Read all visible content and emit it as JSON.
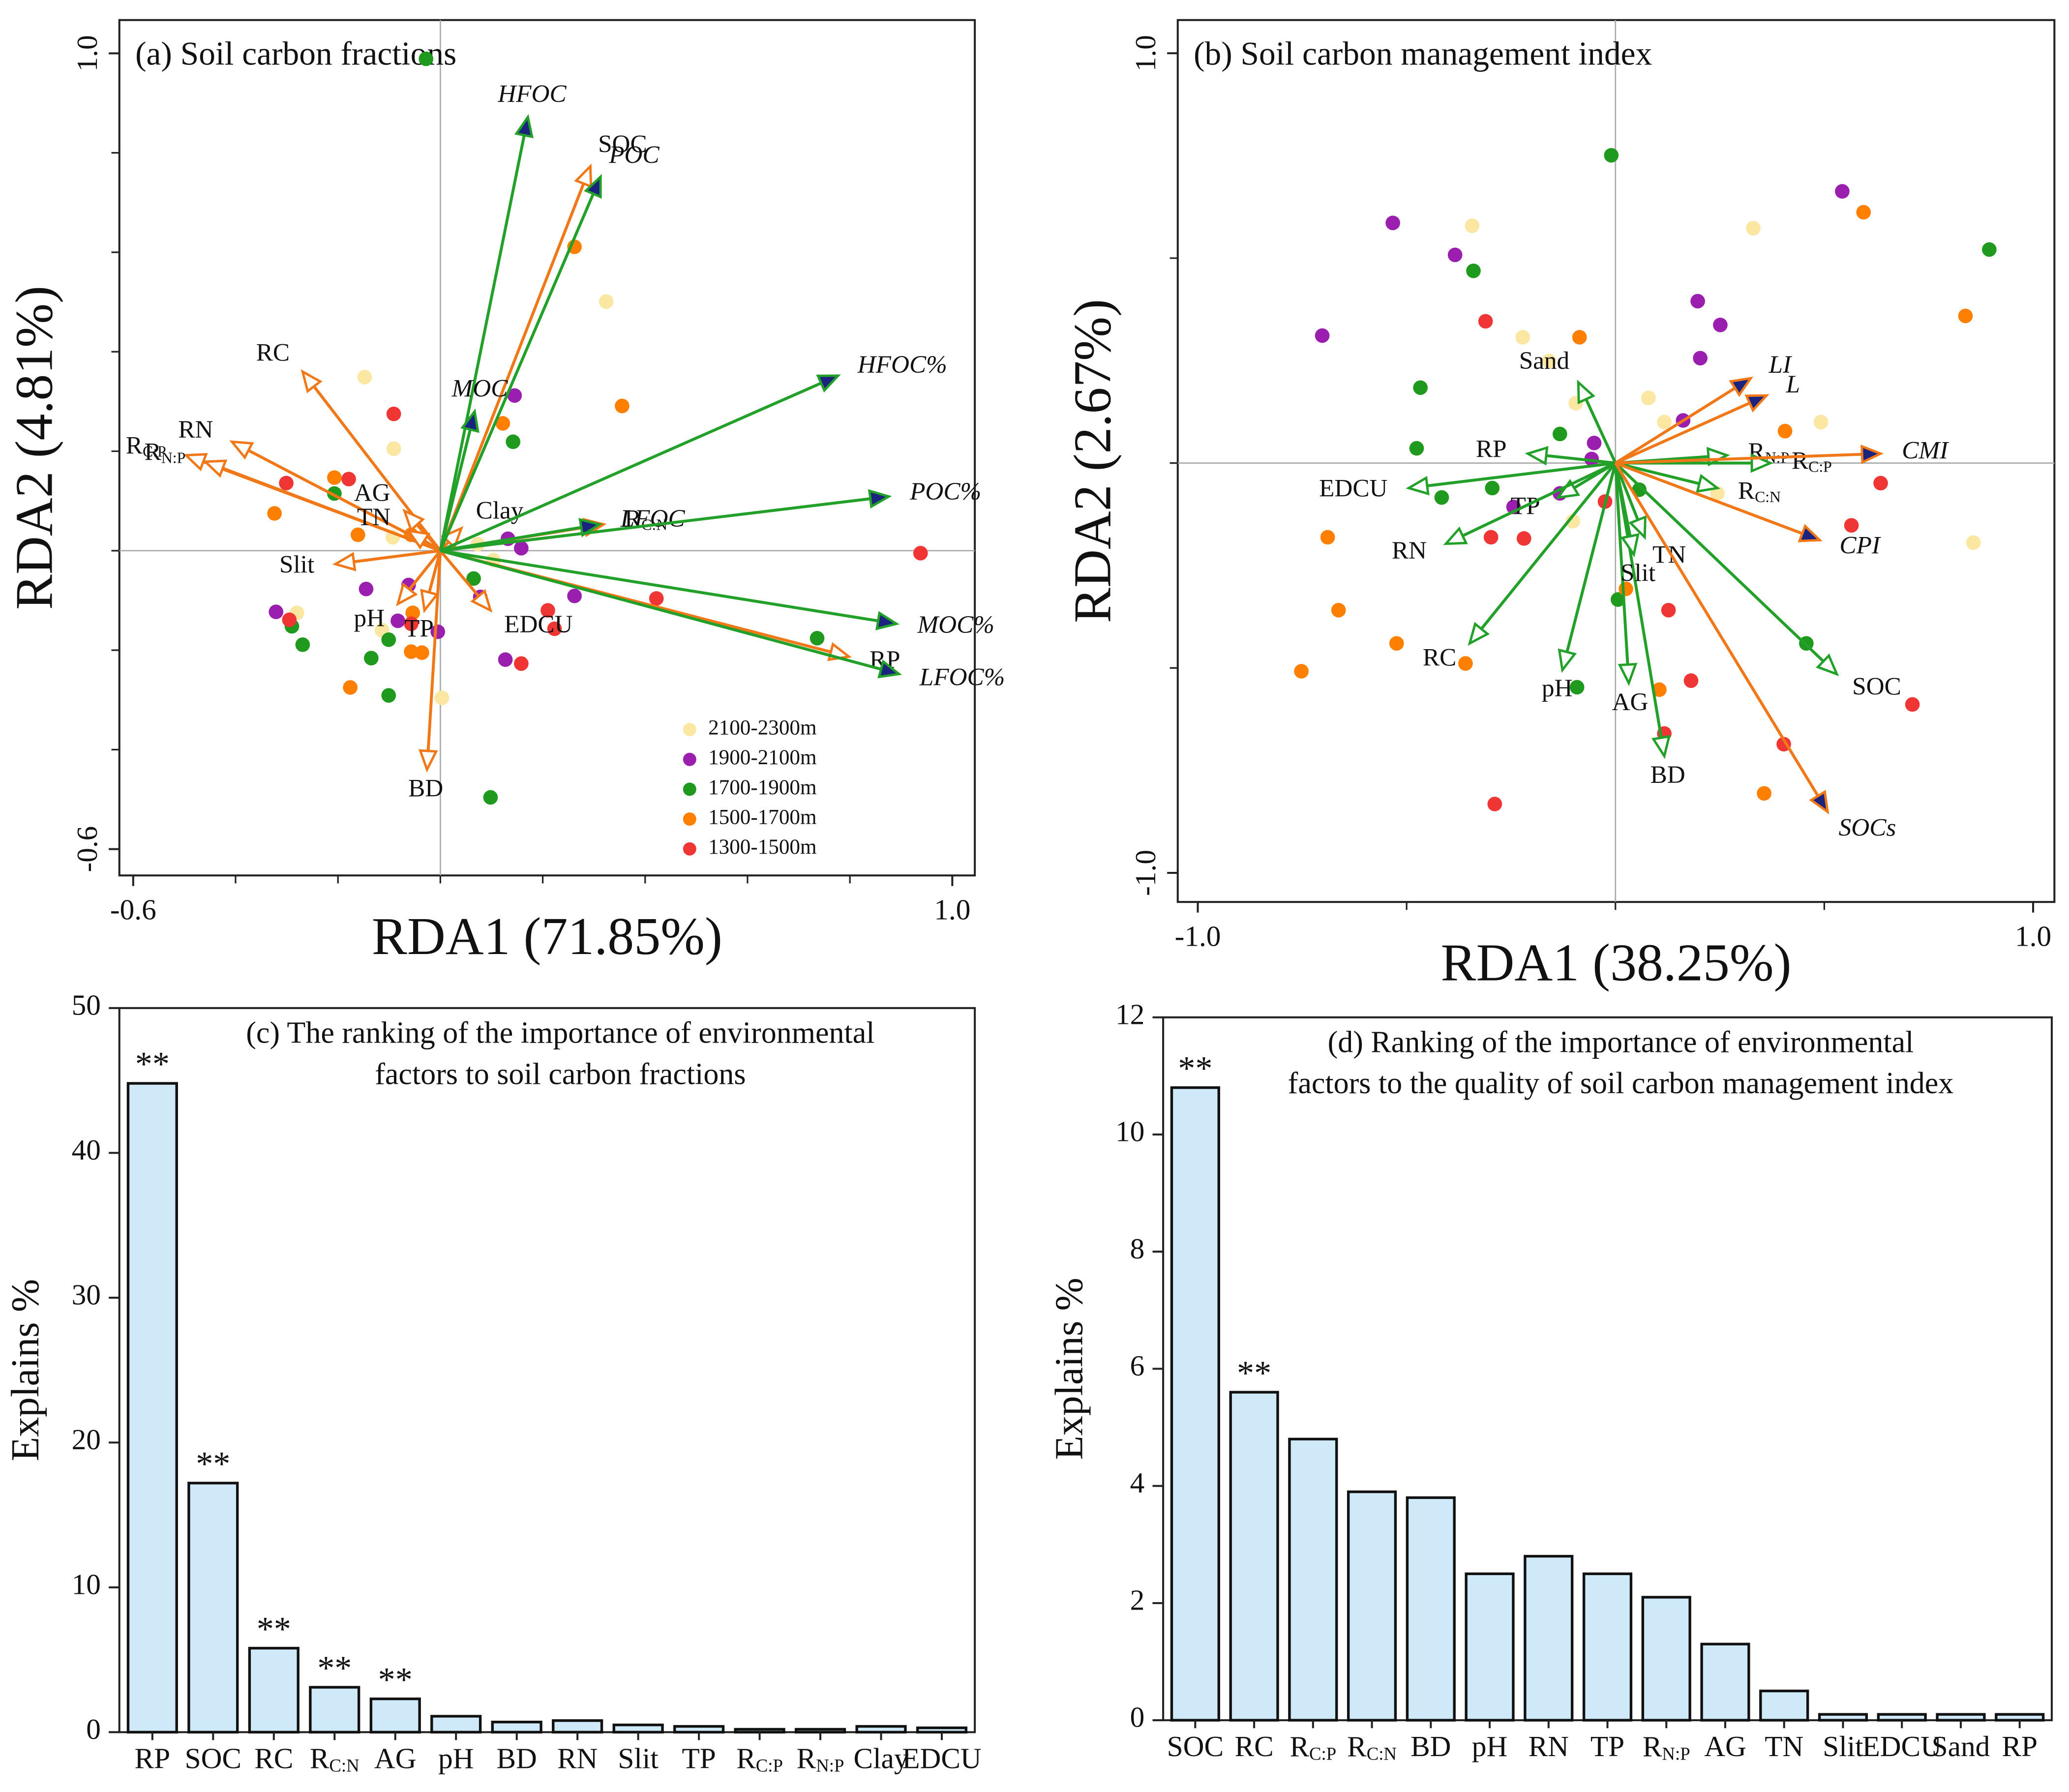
{
  "chart_data": [
    {
      "type": "biplot",
      "title": "(a) Soil carbon fractions",
      "xlabel": "RDA1 (71.85%)",
      "ylabel": "RDA2 (4.81%)",
      "xlim": [
        -0.627,
        1.044
      ],
      "ylim": [
        -0.653,
        1.067
      ],
      "xticks": [
        -0.6,
        {
          "value": 1,
          "label": "1.0"
        }
      ],
      "yticks": [
        -0.6,
        {
          "value": 1,
          "label": "1.0"
        }
      ],
      "xminorticks": [
        -0.4,
        -0.2,
        0,
        0.2,
        0.4,
        0.6,
        0.8
      ],
      "yminorticks": [
        -0.4,
        -0.2,
        0,
        0.2,
        0.4,
        0.6,
        0.8
      ],
      "legend": "lower right",
      "series": [
        {
          "name": "2100-2300m",
          "color": "#fbe6a2",
          "x": [
            -0.148,
            -0.091,
            0.324,
            -0.093,
            -0.28,
            -0.114,
            0.003,
            0.073,
            0.104
          ],
          "y": [
            0.349,
            0.205,
            0.501,
            0.027,
            -0.125,
            -0.16,
            -0.296,
            0.013,
            -0.019
          ]
        },
        {
          "name": "1900-2100m",
          "color": "#9b1faf",
          "x": [
            0.145,
            0.132,
            0.158,
            -0.145,
            -0.062,
            -0.083,
            -0.005,
            -0.321,
            0.078,
            0.262,
            0.127
          ],
          "y": [
            0.312,
            0.024,
            0.005,
            -0.077,
            -0.069,
            -0.141,
            -0.163,
            -0.123,
            -0.093,
            -0.091,
            -0.219
          ]
        },
        {
          "name": "1700-1900m",
          "color": "#1f9a1f",
          "x": [
            -0.028,
            0.142,
            -0.207,
            0.065,
            -0.29,
            -0.269,
            -0.135,
            -0.101,
            -0.101,
            0.098,
            0.736
          ],
          "y": [
            0.989,
            0.219,
            0.115,
            -0.056,
            -0.152,
            -0.189,
            -0.216,
            -0.179,
            -0.291,
            -0.496,
            -0.176
          ]
        },
        {
          "name": "1500-1700m",
          "color": "#ff7f00",
          "x": [
            0.262,
            0.355,
            0.122,
            -0.207,
            -0.324,
            -0.161,
            -0.057,
            -0.054,
            -0.057,
            -0.036,
            -0.176
          ],
          "y": [
            0.611,
            0.291,
            0.256,
            0.147,
            0.075,
            0.032,
            0.032,
            -0.125,
            -0.203,
            -0.205,
            -0.275
          ]
        },
        {
          "name": "1300-1500m",
          "color": "#f03535",
          "x": [
            -0.091,
            -0.179,
            -0.301,
            -0.295,
            -0.057,
            0.21,
            0.223,
            0.158,
            0.422,
            0.938
          ],
          "y": [
            0.275,
            0.144,
            0.136,
            -0.139,
            -0.147,
            -0.12,
            -0.157,
            -0.227,
            -0.096,
            -0.005
          ]
        }
      ],
      "response_arrows": {
        "color": "#22a02a",
        "head": "filled",
        "head_color": "#1a237e",
        "italic": true,
        "labels": [
          "HFOC",
          "POC",
          "MOC",
          "LFOC",
          "HFOC%",
          "POC%",
          "MOC%",
          "LFOC%"
        ],
        "x": [
          0.171,
          0.313,
          0.067,
          0.311,
          0.777,
          0.876,
          0.891,
          0.896
        ],
        "y": [
          0.872,
          0.752,
          0.28,
          0.053,
          0.352,
          0.109,
          -0.147,
          -0.248
        ]
      },
      "explanatory_arrows": {
        "color": "#f07818",
        "head": "hollow",
        "italic": false,
        "labels": [
          "SOC",
          "RC",
          "RN",
          "RC:P",
          "RN:P",
          "AG",
          "TN",
          "Clay",
          "Slit",
          "RC:N",
          "TP",
          "EDCU",
          "pH",
          "BD",
          "RP"
        ],
        "x": [
          0.293,
          -0.269,
          -0.407,
          -0.497,
          -0.459,
          -0.07,
          -0.062,
          0.041,
          -0.205,
          0.319,
          -0.031,
          0.098,
          -0.083,
          -0.026,
          0.798
        ],
        "y": [
          0.773,
          0.36,
          0.219,
          0.192,
          0.179,
          0.08,
          0.04,
          0.045,
          -0.027,
          0.053,
          -0.12,
          -0.12,
          -0.107,
          -0.44,
          -0.213
        ]
      }
    },
    {
      "type": "biplot",
      "title": "(b) Soil carbon management index",
      "xlabel": "RDA1 (38.25%)",
      "ylabel": "RDA2 (2.67%)",
      "xlim": [
        -1.048,
        1.051
      ],
      "ylim": [
        -1.071,
        1.081
      ],
      "xticks": [
        {
          "value": -1,
          "label": "-1.0"
        },
        {
          "value": 1,
          "label": "1.0"
        }
      ],
      "yticks": [
        {
          "value": -1,
          "label": "-1.0"
        },
        {
          "value": 1,
          "label": "1.0"
        }
      ],
      "xminorticks": [
        -0.5,
        0,
        0.5
      ],
      "yminorticks": [
        -0.5,
        0,
        0.5
      ],
      "series": [
        {
          "name": "2100-2300m",
          "color": "#fbe6a2",
          "x": [
            -0.343,
            0.33,
            -0.222,
            -0.159,
            -0.095,
            0.079,
            0.117,
            0.492,
            0.244,
            -0.102,
            0.857
          ],
          "y": [
            0.579,
            0.573,
            0.307,
            0.249,
            0.146,
            0.159,
            0.1,
            0.1,
            -0.074,
            -0.142,
            -0.194
          ]
        },
        {
          "name": "1900-2100m",
          "color": "#9b1faf",
          "x": [
            -0.533,
            -0.384,
            0.543,
            0.197,
            0.251,
            0.203,
            0.162,
            -0.051,
            -0.057,
            -0.133,
            -0.244,
            -0.702
          ],
          "y": [
            0.586,
            0.508,
            0.663,
            0.395,
            0.337,
            0.256,
            0.104,
            0.049,
            0.01,
            -0.074,
            -0.107,
            0.311
          ]
        },
        {
          "name": "1700-1900m",
          "color": "#1f9a1f",
          "x": [
            -0.01,
            0.895,
            -0.34,
            -0.467,
            -0.476,
            -0.133,
            -0.295,
            -0.416,
            0.057,
            0.006,
            -0.092,
            0.457
          ],
          "y": [
            0.751,
            0.521,
            0.469,
            0.184,
            0.036,
            0.071,
            -0.061,
            -0.084,
            -0.065,
            -0.333,
            -0.547,
            -0.44
          ]
        },
        {
          "name": "1500-1700m",
          "color": "#ff7f00",
          "x": [
            0.594,
            0.838,
            -0.086,
            0.406,
            -0.689,
            -0.663,
            -0.524,
            -0.752,
            0.025,
            0.105,
            -0.359,
            0.356
          ],
          "y": [
            0.612,
            0.359,
            0.307,
            0.078,
            -0.181,
            -0.359,
            -0.44,
            -0.508,
            -0.307,
            -0.553,
            -0.489,
            -0.806
          ]
        },
        {
          "name": "1300-1500m",
          "color": "#f03535",
          "x": [
            -0.311,
            0.635,
            0.565,
            -0.025,
            -0.298,
            -0.219,
            0.127,
            0.181,
            0.117,
            0.403,
            0.711,
            -0.289
          ],
          "y": [
            0.346,
            -0.049,
            -0.152,
            -0.094,
            -0.181,
            -0.184,
            -0.359,
            -0.531,
            -0.66,
            -0.686,
            -0.589,
            -0.832
          ]
        }
      ],
      "response_arrows": {
        "color": "#f07818",
        "head": "filled",
        "head_color": "#1a237e",
        "italic": true,
        "labels": [
          "LI",
          "L",
          "CMI",
          "CPI",
          "SOCs"
        ],
        "x": [
          0.324,
          0.362,
          0.635,
          0.489,
          0.508
        ],
        "y": [
          0.207,
          0.165,
          0.023,
          -0.188,
          -0.851
        ]
      },
      "explanatory_arrows": {
        "color": "#22a02a",
        "head": "hollow",
        "italic": false,
        "labels": [
          "Sand",
          "RP",
          "EDCU",
          "TP",
          "RN",
          "RC",
          "pH",
          "AG",
          "BD",
          "TN",
          "Slit",
          "SOC",
          "RN:P",
          "RC:P",
          "RC:N"
        ],
        "x": [
          -0.089,
          -0.21,
          -0.495,
          -0.137,
          -0.406,
          -0.349,
          -0.127,
          0.032,
          0.117,
          0.07,
          0.044,
          0.53,
          0.267,
          0.371,
          0.244
        ],
        "y": [
          0.197,
          0.023,
          -0.061,
          -0.084,
          -0.197,
          -0.44,
          -0.505,
          -0.537,
          -0.715,
          -0.181,
          -0.223,
          -0.515,
          0.019,
          0,
          -0.061
        ]
      }
    },
    {
      "type": "bar",
      "title": [
        "(c) The ranking of the importance of environmental",
        "factors to soil carbon fractions"
      ],
      "ylabel": "Explains %",
      "categories": [
        "RP",
        "SOC",
        "RC",
        "RC:N",
        "AG",
        "pH",
        "BD",
        "RN",
        "Slit",
        "TP",
        "RC:P",
        "RN:P",
        "Clay",
        "EDCU"
      ],
      "values": [
        44.8,
        17.2,
        5.8,
        3.1,
        2.3,
        1.1,
        0.7,
        0.8,
        0.5,
        0.4,
        0.2,
        0.2,
        0.4,
        0.3
      ],
      "significance": [
        "**",
        "**",
        "**",
        "**",
        "**",
        null,
        null,
        null,
        null,
        null,
        null,
        null,
        null,
        null
      ],
      "color": "#cfe9f8",
      "ylim": [
        0,
        50
      ],
      "yticks": [
        0,
        10,
        20,
        30,
        40,
        50
      ]
    },
    {
      "type": "bar",
      "title": [
        "(d) Ranking of the importance of environmental",
        "factors to the quality of soil carbon management index"
      ],
      "ylabel": "Explains %",
      "categories": [
        "SOC",
        "RC",
        "RC:P",
        "RC:N",
        "BD",
        "pH",
        "RN",
        "TP",
        "RN:P",
        "AG",
        "TN",
        "Slit",
        "EDCU",
        "Sand",
        "RP"
      ],
      "values": [
        10.8,
        5.6,
        4.8,
        3.9,
        3.8,
        2.5,
        2.8,
        2.5,
        2.1,
        1.3,
        0.5,
        0.1,
        0.1,
        0.1,
        0.1
      ],
      "significance": [
        "**",
        "**",
        null,
        null,
        null,
        null,
        null,
        null,
        null,
        null,
        null,
        null,
        null,
        null,
        null
      ],
      "color": "#cfe9f8",
      "ylim": [
        0,
        12
      ],
      "yticks": [
        0,
        2,
        4,
        6,
        8,
        10,
        12
      ]
    }
  ]
}
